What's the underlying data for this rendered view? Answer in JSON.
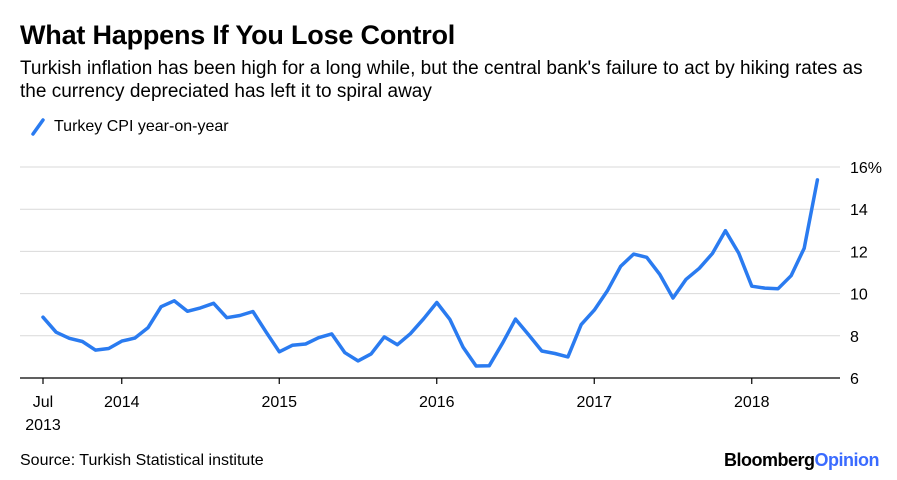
{
  "title": "What Happens If You Lose Control",
  "subtitle": "Turkish inflation has been high for a long while, but the central bank's failure to act by hiking rates as the currency depreciated has left it to spiral away",
  "source": "Source: Turkish Statistical institute",
  "brand": {
    "part1": "Bloomberg",
    "part2": "Opinion"
  },
  "colors": {
    "series": "#2a7bf0",
    "brand_accent": "#3a6bff",
    "grid": "#d9d9d9"
  },
  "chart_data": {
    "type": "line",
    "title": "What Happens If You Lose Control",
    "xlabel": "",
    "ylabel": "",
    "ylim": [
      6,
      16
    ],
    "yticks": [
      6,
      8,
      10,
      12,
      14,
      16
    ],
    "ytick_labels": [
      "6",
      "8",
      "10",
      "12",
      "14",
      "16%"
    ],
    "xrange": [
      2013.5,
      2018.5
    ],
    "xticks": [
      {
        "x": 2013.5,
        "line1": "Jul",
        "line2": "2013"
      },
      {
        "x": 2014.0,
        "line1": "2014",
        "line2": ""
      },
      {
        "x": 2015.0,
        "line1": "2015",
        "line2": ""
      },
      {
        "x": 2016.0,
        "line1": "2016",
        "line2": ""
      },
      {
        "x": 2017.0,
        "line1": "2017",
        "line2": ""
      },
      {
        "x": 2018.0,
        "line1": "2018",
        "line2": ""
      }
    ],
    "legend": "top-left",
    "series": [
      {
        "name": "Turkey CPI year-on-year",
        "x": [
          2013.5,
          2013.583,
          2013.667,
          2013.75,
          2013.833,
          2013.917,
          2014.0,
          2014.083,
          2014.167,
          2014.25,
          2014.333,
          2014.417,
          2014.5,
          2014.583,
          2014.667,
          2014.75,
          2014.833,
          2014.917,
          2015.0,
          2015.083,
          2015.167,
          2015.25,
          2015.333,
          2015.417,
          2015.5,
          2015.583,
          2015.667,
          2015.75,
          2015.833,
          2015.917,
          2016.0,
          2016.083,
          2016.167,
          2016.25,
          2016.333,
          2016.417,
          2016.5,
          2016.583,
          2016.667,
          2016.75,
          2016.833,
          2016.917,
          2017.0,
          2017.083,
          2017.167,
          2017.25,
          2017.333,
          2017.417,
          2017.5,
          2017.583,
          2017.667,
          2017.75,
          2017.833,
          2017.917,
          2018.0,
          2018.083,
          2018.167,
          2018.25,
          2018.333,
          2018.417
        ],
        "values": [
          8.88,
          8.17,
          7.88,
          7.73,
          7.32,
          7.4,
          7.75,
          7.89,
          8.39,
          9.38,
          9.66,
          9.16,
          9.32,
          9.54,
          8.86,
          8.96,
          9.15,
          8.17,
          7.24,
          7.55,
          7.61,
          7.91,
          8.09,
          7.2,
          6.81,
          7.14,
          7.95,
          7.58,
          8.1,
          8.81,
          9.58,
          8.78,
          7.46,
          6.57,
          6.58,
          7.64,
          8.79,
          8.05,
          7.28,
          7.16,
          7.0,
          8.53,
          9.22,
          10.13,
          11.29,
          11.87,
          11.72,
          10.9,
          9.79,
          10.68,
          11.2,
          11.9,
          12.98,
          11.92,
          10.35,
          10.26,
          10.23,
          10.85,
          12.15,
          15.39
        ]
      }
    ]
  }
}
